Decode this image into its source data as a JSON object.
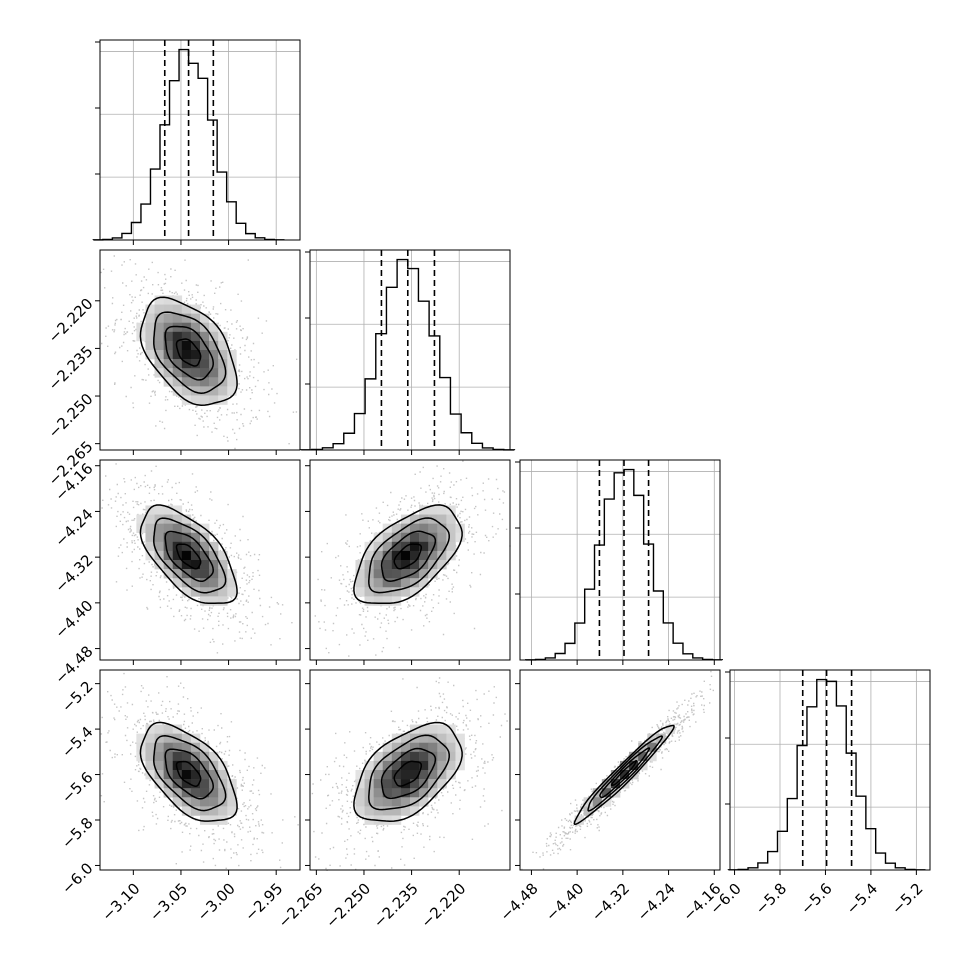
{
  "chart_data": {
    "type": "corner",
    "title": "",
    "parameters": [
      "",
      "",
      "",
      ""
    ],
    "axis_ranges": [
      [
        -3.135,
        -2.925
      ],
      [
        -2.267,
        -2.204
      ],
      [
        -4.5,
        -4.15
      ],
      [
        -6.02,
        -5.14
      ]
    ],
    "x_ticks": [
      {
        "values": [
          -3.1,
          -3.05,
          -3.0,
          -2.95
        ],
        "labels": [
          "−3.10",
          "−3.05",
          "−3.00",
          "−2.95"
        ]
      },
      {
        "values": [
          -2.265,
          -2.25,
          -2.235,
          -2.22
        ],
        "labels": [
          "−2.265",
          "−2.250",
          "−2.235",
          "−2.220"
        ]
      },
      {
        "values": [
          -4.48,
          -4.4,
          -4.32,
          -4.24,
          -4.16
        ],
        "labels": [
          "−4.48",
          "−4.40",
          "−4.32",
          "−4.24",
          "−4.16"
        ]
      },
      {
        "values": [
          -6.0,
          -5.8,
          -5.6,
          -5.4,
          -5.2
        ],
        "labels": [
          "−6.0",
          "−5.8",
          "−5.6",
          "−5.4",
          "−5.2"
        ]
      }
    ],
    "y_ticks": [
      null,
      {
        "values": [
          -2.22,
          -2.235,
          -2.25,
          -2.265
        ],
        "labels": [
          "−2.220",
          "−2.235",
          "−2.250",
          "−2.265"
        ]
      },
      {
        "values": [
          -4.16,
          -4.24,
          -4.32,
          -4.4,
          -4.48
        ],
        "labels": [
          "−4.16",
          "−4.24",
          "−4.32",
          "−4.40",
          "−4.48"
        ]
      },
      {
        "values": [
          -5.2,
          -5.4,
          -5.6,
          -5.8,
          -6.0
        ],
        "labels": [
          "−5.2",
          "−5.4",
          "−5.6",
          "−5.8",
          "−6.0"
        ]
      }
    ],
    "marginals": [
      {
        "param": 0,
        "quantiles": [
          -3.067,
          -3.042,
          -3.016
        ]
      },
      {
        "param": 1,
        "quantiles": [
          -2.2445,
          -2.2362,
          -2.2278
        ]
      },
      {
        "param": 2,
        "quantiles": [
          -4.361,
          -4.318,
          -4.275
        ]
      },
      {
        "param": 3,
        "quantiles": [
          -5.7,
          -5.595,
          -5.485
        ]
      }
    ],
    "joint": [
      {
        "x": 0,
        "y": 1,
        "correlation": -0.45
      },
      {
        "x": 0,
        "y": 2,
        "correlation": -0.6
      },
      {
        "x": 1,
        "y": 2,
        "correlation": 0.55
      },
      {
        "x": 0,
        "y": 3,
        "correlation": -0.55
      },
      {
        "x": 1,
        "y": 3,
        "correlation": 0.5
      },
      {
        "x": 2,
        "y": 3,
        "correlation": 0.97
      }
    ],
    "means": [
      -3.042,
      -2.2362,
      -4.318,
      -5.595
    ],
    "stds": [
      0.025,
      0.0084,
      0.043,
      0.108
    ],
    "grid": true,
    "colors": {
      "hist": "#000000",
      "scatter": "#7f7f7f",
      "grid": "#b0b0b0"
    }
  }
}
